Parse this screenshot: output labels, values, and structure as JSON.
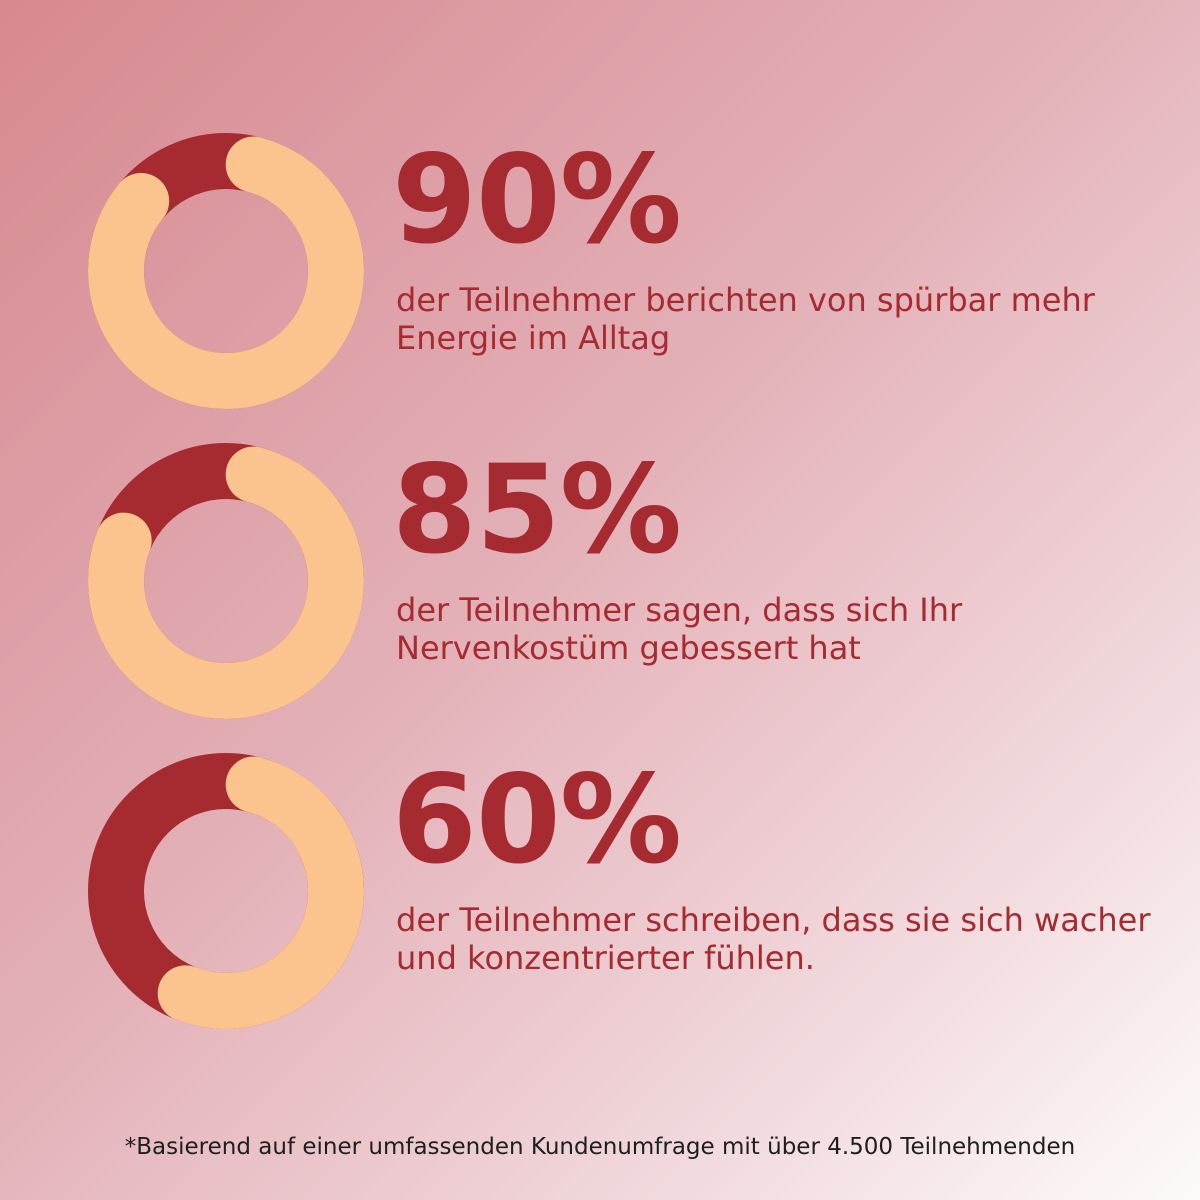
{
  "colors": {
    "arc_fill": "#fbc48e",
    "arc_remainder": "#a62b31",
    "text": "#a62b31",
    "footnote": "#1e1e1e"
  },
  "stats": [
    {
      "value_label": "90%",
      "description": "der Teilnehmer berichten von spürbar mehr Energie im Alltag"
    },
    {
      "value_label": "85%",
      "description": "der Teilnehmer sagen, dass sich Ihr Nervenkostüm gebessert hat"
    },
    {
      "value_label": "60%",
      "description": "der Teilnehmer schreiben, dass sie sich wacher und konzentrierter fühlen."
    }
  ],
  "chart_data": [
    {
      "type": "pie",
      "variant": "donut",
      "direction": "clockwise",
      "start": "top",
      "values": [
        90,
        10
      ],
      "ylim": [
        0,
        100
      ]
    },
    {
      "type": "pie",
      "variant": "donut",
      "direction": "clockwise",
      "start": "top",
      "values": [
        85,
        15
      ],
      "ylim": [
        0,
        100
      ]
    },
    {
      "type": "pie",
      "variant": "donut",
      "direction": "clockwise",
      "start": "top",
      "values": [
        60,
        40
      ],
      "ylim": [
        0,
        100
      ]
    }
  ],
  "footnote": "*Basierend auf einer umfassenden Kundenumfrage mit über 4.500 Teilnehmenden"
}
